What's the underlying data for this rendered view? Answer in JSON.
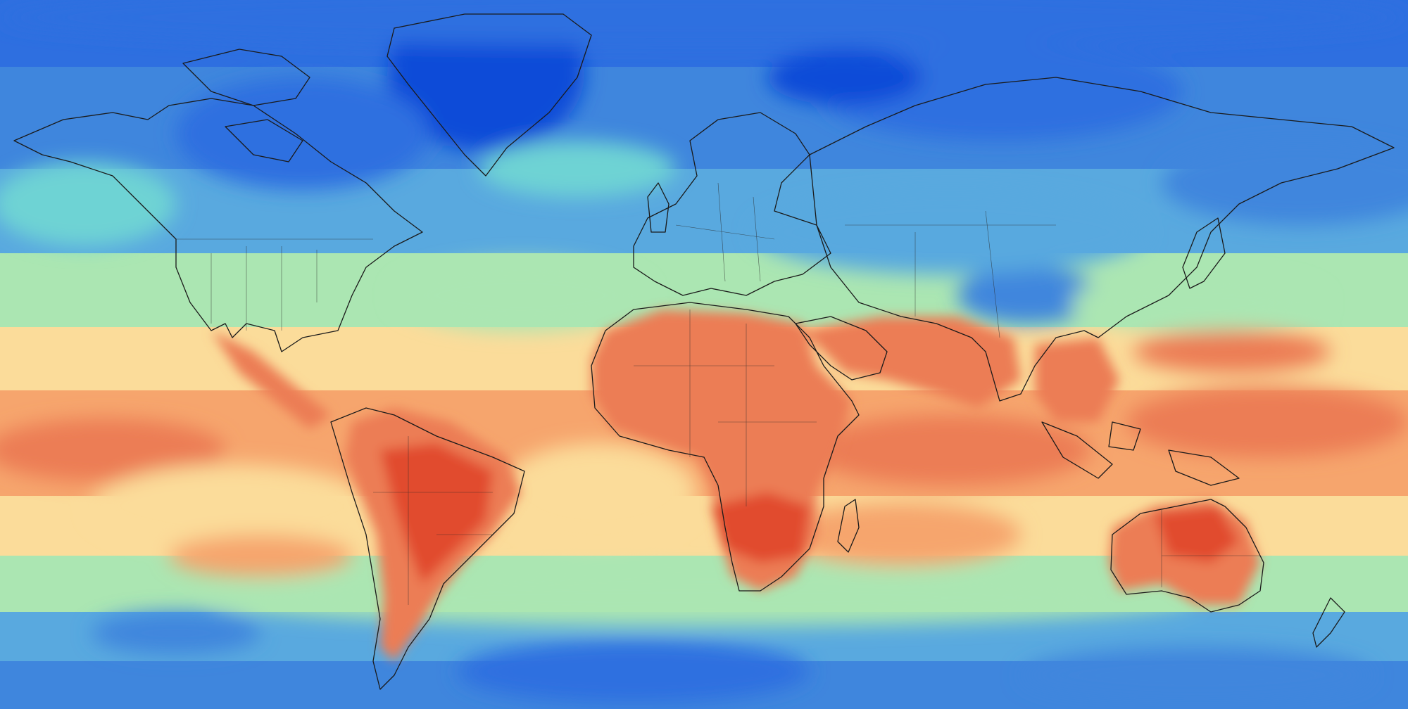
{
  "map": {
    "projection": "equirectangular",
    "extent": {
      "lon": [
        -180,
        180
      ],
      "lat": [
        -90,
        90
      ]
    },
    "legend": "none",
    "title": "",
    "palette": {
      "deep_blue": "#0b4bd8",
      "blue": "#2e6fe0",
      "mid_blue": "#3f86dd",
      "light_blue": "#59a9df",
      "cyan": "#6ed3d4",
      "mint": "#abe6b2",
      "sand": "#fbdc9a",
      "light_orange": "#f6a56d",
      "orange": "#ec7d55",
      "red": "#e14b2f",
      "coastline": "#1a1a1a"
    },
    "layers": [
      "temperature-field",
      "coastlines",
      "country-borders"
    ]
  }
}
